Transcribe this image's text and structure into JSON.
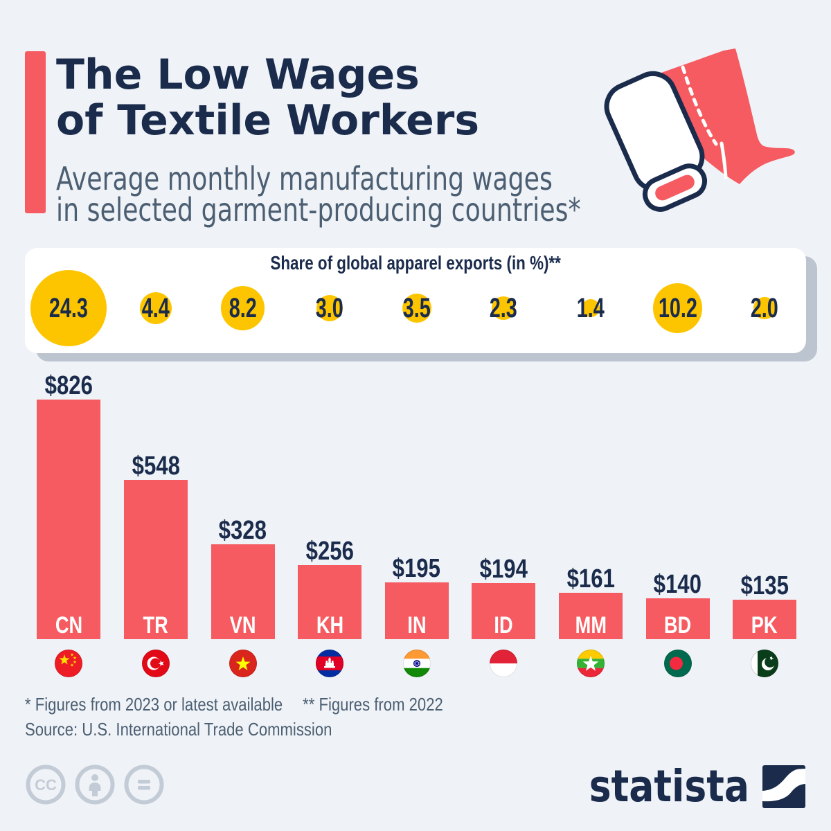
{
  "title": {
    "text": "The Low Wages\nof Textile Workers"
  },
  "subtitle": {
    "text": "Average monthly manufacturing wages\nin selected garment-producing countries*"
  },
  "panel": {
    "heading": "Share of global apparel exports (in %)**"
  },
  "chart_data": {
    "type": "bar",
    "title": "Average monthly manufacturing wages in selected garment-producing countries",
    "unit": "USD per month",
    "categories": [
      "CN",
      "TR",
      "VN",
      "KH",
      "IN",
      "ID",
      "MM",
      "BD",
      "PK"
    ],
    "countries": [
      "China",
      "Turkey",
      "Vietnam",
      "Cambodia",
      "India",
      "Indonesia",
      "Myanmar",
      "Bangladesh",
      "Pakistan"
    ],
    "values": [
      826,
      548,
      328,
      256,
      195,
      194,
      161,
      140,
      135
    ],
    "value_labels": [
      "$826",
      "$548",
      "$328",
      "$256",
      "$195",
      "$194",
      "$161",
      "$140",
      "$135"
    ],
    "export_share_title": "Share of global apparel exports (in %)",
    "export_share": [
      24.3,
      4.4,
      8.2,
      3.0,
      3.5,
      2.3,
      1.4,
      10.2,
      2.0
    ],
    "export_share_labels": [
      "24.3",
      "4.4",
      "8.2",
      "3.0",
      "3.5",
      "2.3",
      "1.4",
      "10.2",
      "2.0"
    ]
  },
  "footnotes": {
    "note1": "* Figures from 2023 or latest available",
    "note2": "** Figures from 2022",
    "source": "Source: U.S. International Trade Commission"
  },
  "branding": {
    "logo_text": "statista"
  },
  "colors": {
    "coral": "#f55b60",
    "yellow": "#fdc500",
    "navy": "#1a2b4c",
    "background": "#eff3f7",
    "slate": "#4c5e72"
  }
}
